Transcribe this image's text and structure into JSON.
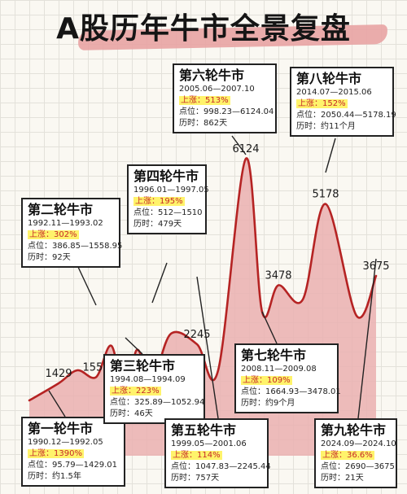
{
  "title": "A股历年牛市全景复盘",
  "colors": {
    "area_fill": "#eab0b0",
    "line": "#b52323",
    "highlight": "#fff36b",
    "gain_text": "#c62828"
  },
  "chart_data": {
    "type": "area",
    "title": "A股历年牛市全景复盘",
    "peaks": [
      {
        "round": 1,
        "label": "1429",
        "value": 1429
      },
      {
        "round": 2,
        "label": "1558",
        "value": 1558
      },
      {
        "round": 3,
        "label": "1052",
        "value": 1052
      },
      {
        "round": 4,
        "label": "1510",
        "value": 1510
      },
      {
        "round": 5,
        "label": "2245",
        "value": 2245
      },
      {
        "round": 6,
        "label": "6124",
        "value": 6124
      },
      {
        "round": 7,
        "label": "3478",
        "value": 3478
      },
      {
        "round": 8,
        "label": "5178",
        "value": 5178
      },
      {
        "round": 9,
        "label": "3675",
        "value": 3675
      }
    ],
    "rounds": [
      {
        "name": "第一轮牛市",
        "period": "1990.12—1992.05",
        "gain_label": "上涨：",
        "gain": "1390%",
        "points_label": "点位：",
        "points": "95.79—1429.01",
        "duration_label": "历时：",
        "duration": "约1.5年"
      },
      {
        "name": "第二轮牛市",
        "period": "1992.11—1993.02",
        "gain_label": "上涨：",
        "gain": "302%",
        "points_label": "点位：",
        "points": "386.85—1558.95",
        "duration_label": "历时：",
        "duration": "92天"
      },
      {
        "name": "第三轮牛市",
        "period": "1994.08—1994.09",
        "gain_label": "上涨：",
        "gain": "223%",
        "points_label": "点位：",
        "points": "325.89—1052.94",
        "duration_label": "历时：",
        "duration": "46天"
      },
      {
        "name": "第四轮牛市",
        "period": "1996.01—1997.05",
        "gain_label": "上涨：",
        "gain": "195%",
        "points_label": "点位：",
        "points": "512—1510",
        "duration_label": "历时：",
        "duration": "479天"
      },
      {
        "name": "第五轮牛市",
        "period": "1999.05—2001.06",
        "gain_label": "上涨：",
        "gain": "114%",
        "points_label": "点位：",
        "points": "1047.83—2245.44",
        "duration_label": "历时：",
        "duration": "757天"
      },
      {
        "name": "第六轮牛市",
        "period": "2005.06—2007.10",
        "gain_label": "上涨：",
        "gain": "513%",
        "points_label": "点位：",
        "points": "998.23—6124.04",
        "duration_label": "历时：",
        "duration": "862天"
      },
      {
        "name": "第七轮牛市",
        "period": "2008.11—2009.08",
        "gain_label": "上涨：",
        "gain": "109%",
        "points_label": "点位：",
        "points": "1664.93—3478.01",
        "duration_label": "历时：",
        "duration": "约9个月"
      },
      {
        "name": "第八轮牛市",
        "period": "2014.07—2015.06",
        "gain_label": "上涨：",
        "gain": "152%",
        "points_label": "点位：",
        "points": "2050.44—5178.19",
        "duration_label": "历时：",
        "duration": "约11个月"
      },
      {
        "name": "第九轮牛市",
        "period": "2024.09—2024.10",
        "gain_label": "上涨：",
        "gain": "36.6%",
        "points_label": "点位：",
        "points": "2690—3675",
        "duration_label": "历时：",
        "duration": "21天"
      }
    ]
  }
}
